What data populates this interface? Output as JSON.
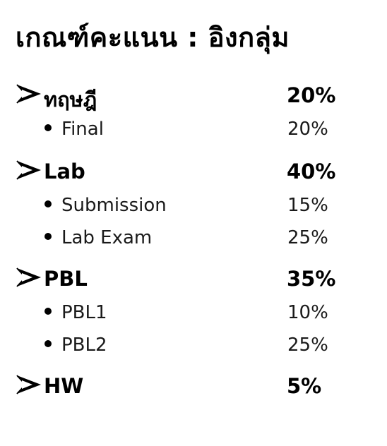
{
  "title": "เกณฑ์คะแนน : อิงกลุ่ม",
  "sections": [
    {
      "label": "ทฤษฎี",
      "percent": "20%",
      "items": [
        {
          "label": "Final",
          "percent": "20%"
        }
      ]
    },
    {
      "label": "Lab",
      "percent": "40%",
      "items": [
        {
          "label": "Submission",
          "percent": "15%"
        },
        {
          "label": "Lab Exam",
          "percent": "25%"
        }
      ]
    },
    {
      "label": "PBL",
      "percent": "35%",
      "items": [
        {
          "label": "PBL1",
          "percent": "10%"
        },
        {
          "label": "PBL2",
          "percent": "25%"
        }
      ]
    },
    {
      "label": "HW",
      "percent": "5%",
      "items": []
    }
  ],
  "icons": {
    "section_marker": "arrow-bullet-icon",
    "item_marker": "dot-bullet-icon"
  },
  "colors": {
    "text": "#000000",
    "background": "#ffffff"
  }
}
